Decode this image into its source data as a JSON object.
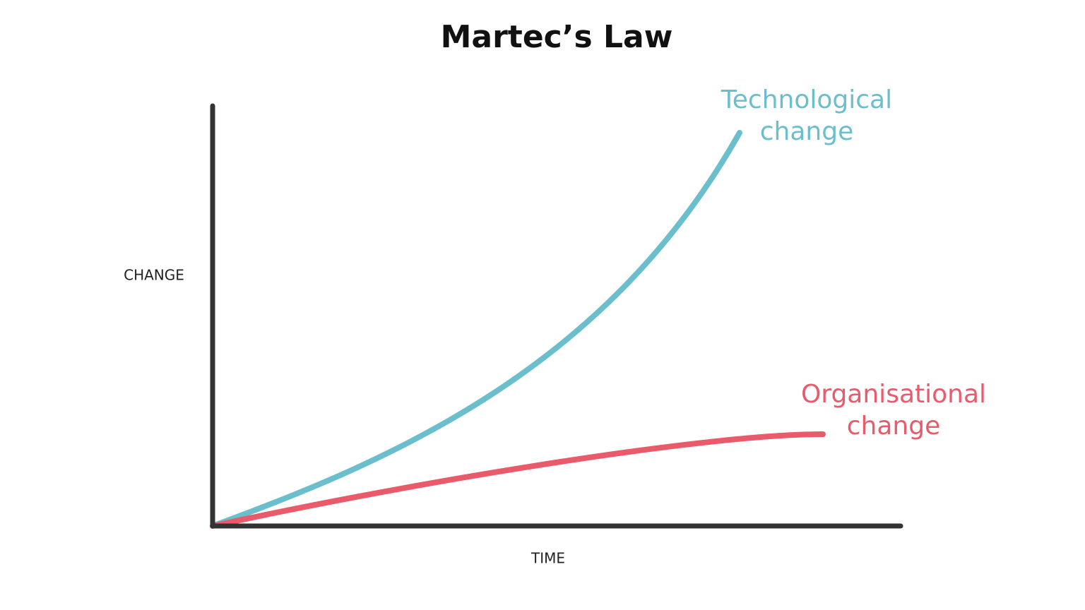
{
  "title": "Martec’s Law",
  "y_axis_label": "CHANGE",
  "x_axis_label": "TIME",
  "curves": [
    {
      "label_lines": [
        "Technological",
        "change"
      ],
      "color": "#6bbfcc"
    },
    {
      "label_lines": [
        "Organisational",
        "change"
      ],
      "color": "#e95a6b"
    }
  ]
}
